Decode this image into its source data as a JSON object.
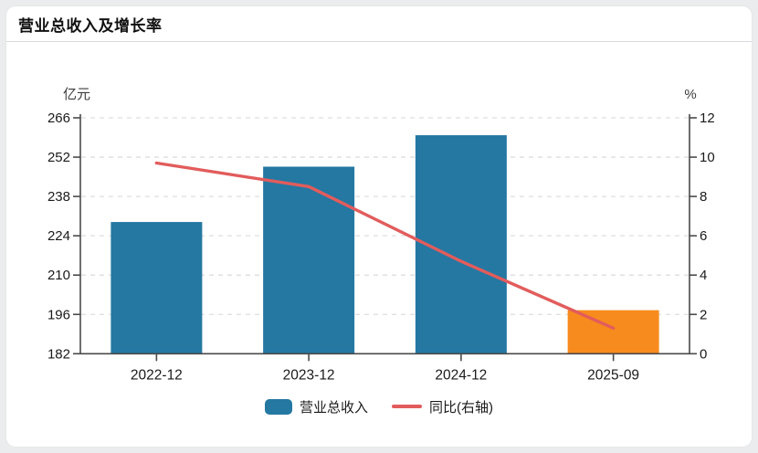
{
  "header": {
    "title": "营业总收入及增长率"
  },
  "chart_data": {
    "type": "bar+line",
    "categories": [
      "2022-12",
      "2023-12",
      "2024-12",
      "2025-09"
    ],
    "series": [
      {
        "name": "营业总收入",
        "type": "bar",
        "axis": "left",
        "unit": "亿元",
        "values": [
          228.9,
          248.6,
          259.8,
          197.5
        ],
        "bar_colors": [
          "#2478a2",
          "#2478a2",
          "#2478a2",
          "#f78b1e"
        ]
      },
      {
        "name": "同比(右轴)",
        "type": "line",
        "axis": "right",
        "unit": "%",
        "values": [
          9.7,
          8.5,
          4.7,
          1.3
        ],
        "color": "#e25c5c"
      }
    ],
    "left_axis": {
      "label": "亿元",
      "ticks": [
        266,
        252,
        238,
        224,
        210,
        196,
        182
      ],
      "min": 182,
      "max": 266
    },
    "right_axis": {
      "label": "%",
      "ticks": [
        12,
        10,
        8,
        6,
        4,
        2,
        0
      ],
      "min": 0,
      "max": 12
    },
    "grid": true,
    "legend_position": "bottom-center",
    "legend": [
      {
        "label": "营业总收入",
        "swatch": "bar",
        "color": "#2478a2"
      },
      {
        "label": "同比(右轴)",
        "swatch": "line",
        "color": "#e25c5c"
      }
    ]
  },
  "colors": {
    "bar_blue": "#2478a2",
    "bar_orange": "#f78b1e",
    "line_red": "#e25c5c",
    "gridline": "#dddddd",
    "axis": "#4a4a4a",
    "tick_label": "#1a1a1a",
    "unit_label": "#3c3c3c",
    "card_bg": "#ffffff",
    "page_bg": "#ebeced"
  }
}
